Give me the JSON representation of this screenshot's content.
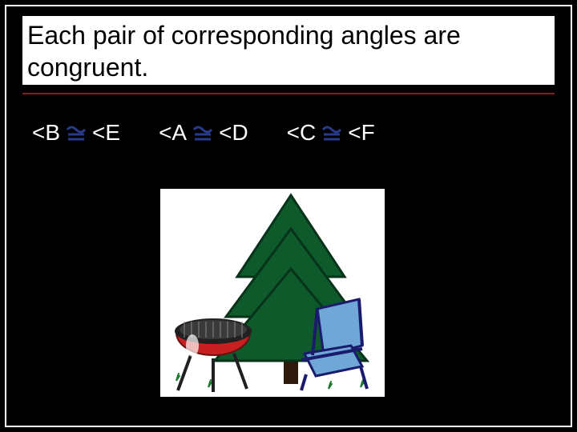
{
  "slide": {
    "title": "Each pair of corresponding angles are congruent.",
    "bg_color": "#000000",
    "border_color": "#ffffff",
    "title_bg": "#ffffff",
    "title_color": "#000000",
    "title_fontsize": 32,
    "rule_color": "#8b1a1a",
    "text_color": "#ffffff",
    "angle_fontsize": 28,
    "congruent_glyph_color": "#2a3a8a"
  },
  "angle_pairs": [
    {
      "left": "<B",
      "right": "<E"
    },
    {
      "left": "<A",
      "right": "<D"
    },
    {
      "left": "<C",
      "right": "<F"
    }
  ],
  "clipart": {
    "type": "infographic",
    "description": "camping-scene",
    "background": "#ffffff",
    "tree": {
      "fill": "#0e5a2a",
      "outline": "#06331a",
      "trunk": "#2e1a0d"
    },
    "grill": {
      "body": "#c82020",
      "rim": "#202020",
      "legs": "#202020",
      "highlight": "#ffffff"
    },
    "chair": {
      "frame": "#1b1b6e",
      "seat_fill": "#6fa8d6",
      "seat_stroke": "#1b1b6e"
    },
    "grass": {
      "color": "#1f7a33"
    }
  }
}
